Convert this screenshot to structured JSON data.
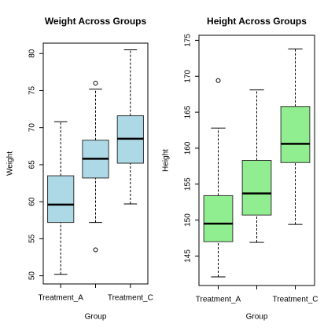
{
  "chart_data": [
    {
      "type": "box",
      "title": "Weight Across Groups",
      "xlabel": "Group",
      "ylabel": "Weight",
      "categories": [
        "Treatment_A",
        null,
        "Treatment_C"
      ],
      "color": "#add8e6",
      "boxes": [
        {
          "low": 50.2,
          "q1": 57.2,
          "median": 59.6,
          "q3": 63.5,
          "high": 70.8,
          "outliers": []
        },
        {
          "low": 57.2,
          "q1": 63.2,
          "median": 65.8,
          "q3": 68.3,
          "high": 75.2,
          "outliers": [
            76.0,
            53.5
          ]
        },
        {
          "low": 59.7,
          "q1": 65.2,
          "median": 68.5,
          "q3": 71.6,
          "high": 80.5,
          "outliers": []
        }
      ],
      "ylim": [
        48.9,
        81.4
      ],
      "yticks": [
        50,
        55,
        60,
        65,
        70,
        75,
        80
      ]
    },
    {
      "type": "box",
      "title": "Height Across Groups",
      "xlabel": "Group",
      "ylabel": "Height",
      "categories": [
        "Treatment_A",
        null,
        "Treatment_C"
      ],
      "color": "#90ee90",
      "boxes": [
        {
          "low": 142.1,
          "q1": 147.0,
          "median": 149.5,
          "q3": 153.4,
          "high": 162.8,
          "outliers": [
            169.4
          ]
        },
        {
          "low": 146.9,
          "q1": 150.7,
          "median": 153.7,
          "q3": 158.3,
          "high": 168.1,
          "outliers": []
        },
        {
          "low": 149.4,
          "q1": 158.0,
          "median": 160.6,
          "q3": 165.8,
          "high": 173.8,
          "outliers": []
        }
      ],
      "ylim": [
        140.9,
        175.7
      ],
      "yticks": [
        145,
        150,
        155,
        160,
        165,
        170,
        175
      ]
    }
  ]
}
